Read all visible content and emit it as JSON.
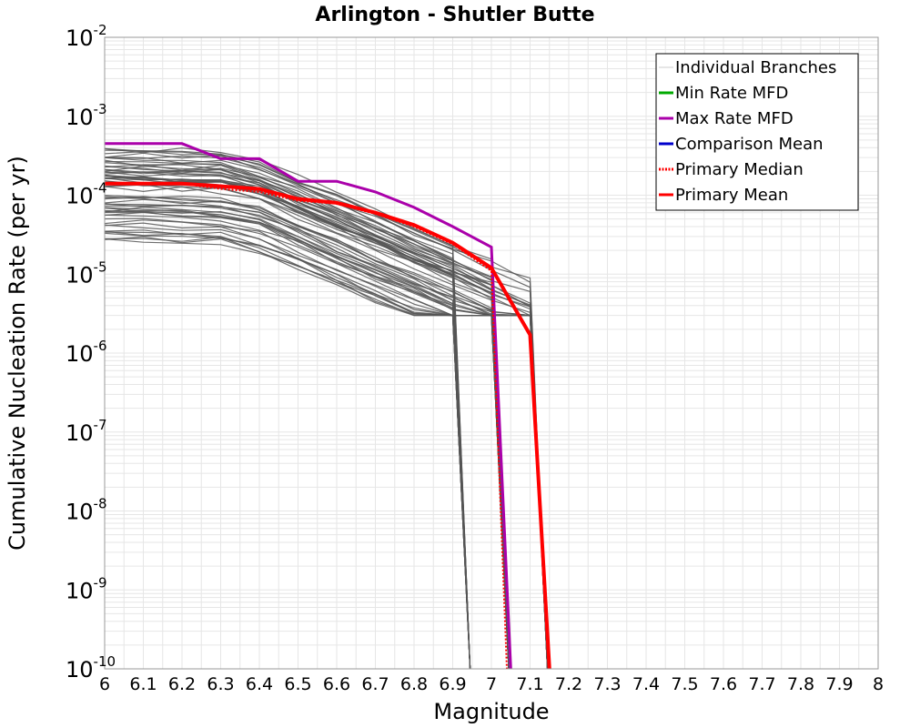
{
  "chart_data": {
    "type": "line",
    "title": "Arlington - Shutler Butte",
    "xlabel": "Magnitude",
    "ylabel": "Cumulative Nucleation Rate (per yr)",
    "xlim": [
      6,
      8
    ],
    "ylim": [
      1e-10,
      0.01
    ],
    "y_scale": "log",
    "x_ticks": [
      "6",
      "6.1",
      "6.2",
      "6.3",
      "6.4",
      "6.5",
      "6.6",
      "6.7",
      "6.8",
      "6.9",
      "7",
      "7.1",
      "7.2",
      "7.3",
      "7.4",
      "7.5",
      "7.6",
      "7.7",
      "7.8",
      "7.9",
      "8"
    ],
    "y_ticks": [
      {
        "base": "10",
        "exp": "-2"
      },
      {
        "base": "10",
        "exp": "-3"
      },
      {
        "base": "10",
        "exp": "-4"
      },
      {
        "base": "10",
        "exp": "-5"
      },
      {
        "base": "10",
        "exp": "-6"
      },
      {
        "base": "10",
        "exp": "-7"
      },
      {
        "base": "10",
        "exp": "-8"
      },
      {
        "base": "10",
        "exp": "-9"
      },
      {
        "base": "10",
        "exp": "-10"
      }
    ],
    "grid": true,
    "legend_position": "top-right",
    "legend": [
      {
        "label": "Individual Branches",
        "color": "#cccccc",
        "style": "solid"
      },
      {
        "label": "Min Rate MFD",
        "color": "#00aa00",
        "style": "solid"
      },
      {
        "label": "Max Rate MFD",
        "color": "#aa00aa",
        "style": "solid"
      },
      {
        "label": "Comparison Mean",
        "color": "#0000cc",
        "style": "solid"
      },
      {
        "label": "Primary Median",
        "color": "#ff0000",
        "style": "dotted"
      },
      {
        "label": "Primary Mean",
        "color": "#ff0000",
        "style": "solid"
      }
    ],
    "series": [
      {
        "name": "Max Rate MFD",
        "color": "#aa00aa",
        "x": [
          6.0,
          6.1,
          6.2,
          6.3,
          6.4,
          6.5,
          6.6,
          6.7,
          6.8,
          6.9,
          7.0,
          7.05
        ],
        "y": [
          0.00045,
          0.00045,
          0.00045,
          0.00029,
          0.00029,
          0.00015,
          0.00015,
          0.00011,
          7e-05,
          4e-05,
          2.2e-05,
          1e-10
        ]
      },
      {
        "name": "Primary Mean",
        "color": "#ff0000",
        "x": [
          6.0,
          6.1,
          6.2,
          6.3,
          6.4,
          6.5,
          6.6,
          6.7,
          6.8,
          6.9,
          7.0,
          7.1,
          7.15
        ],
        "y": [
          0.00014,
          0.00014,
          0.00014,
          0.00013,
          0.00012,
          9e-05,
          8e-05,
          6e-05,
          4.2e-05,
          2.5e-05,
          1.2e-05,
          1.7e-06,
          1e-10
        ]
      },
      {
        "name": "Primary Median",
        "color": "#ff0000",
        "x": [
          6.0,
          6.1,
          6.2,
          6.3,
          6.4,
          6.5,
          6.6,
          6.7,
          6.8,
          6.9,
          7.0,
          7.04
        ],
        "y": [
          0.00014,
          0.00014,
          0.00014,
          0.00012,
          0.00011,
          8.5e-05,
          7.8e-05,
          5.8e-05,
          4e-05,
          2.4e-05,
          1.1e-05,
          1e-10
        ]
      },
      {
        "name": "Individual Branches",
        "color": "#555555",
        "count": 60,
        "base_x": [
          6.0,
          6.1,
          6.2,
          6.3,
          6.4,
          6.5,
          6.6,
          6.7,
          6.8,
          6.9,
          7.0,
          7.1
        ],
        "rate_at_6_range": [
          2.8e-05,
          0.0004
        ],
        "max_magnitudes": [
          6.9,
          7.0,
          7.1
        ]
      }
    ]
  }
}
